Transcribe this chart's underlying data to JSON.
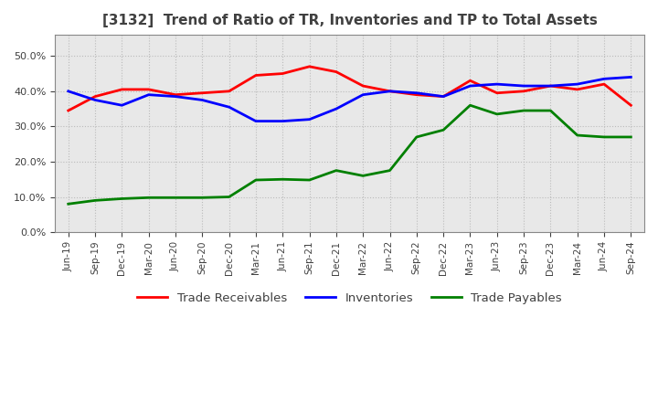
{
  "title": "[3132]  Trend of Ratio of TR, Inventories and TP to Total Assets",
  "x_labels": [
    "Jun-19",
    "Sep-19",
    "Dec-19",
    "Mar-20",
    "Jun-20",
    "Sep-20",
    "Dec-20",
    "Mar-21",
    "Jun-21",
    "Sep-21",
    "Dec-21",
    "Mar-22",
    "Jun-22",
    "Sep-22",
    "Dec-22",
    "Mar-23",
    "Jun-23",
    "Sep-23",
    "Dec-23",
    "Mar-24",
    "Jun-24",
    "Sep-24"
  ],
  "trade_receivables": [
    0.345,
    0.385,
    0.405,
    0.405,
    0.39,
    0.395,
    0.4,
    0.445,
    0.45,
    0.47,
    0.455,
    0.415,
    0.4,
    0.39,
    0.385,
    0.43,
    0.395,
    0.4,
    0.415,
    0.405,
    0.42,
    0.36
  ],
  "inventories": [
    0.4,
    0.375,
    0.36,
    0.39,
    0.385,
    0.375,
    0.355,
    0.315,
    0.315,
    0.32,
    0.35,
    0.39,
    0.4,
    0.395,
    0.385,
    0.415,
    0.42,
    0.415,
    0.415,
    0.42,
    0.435,
    0.44
  ],
  "trade_payables": [
    0.08,
    0.09,
    0.095,
    0.098,
    0.098,
    0.098,
    0.1,
    0.148,
    0.15,
    0.148,
    0.175,
    0.16,
    0.175,
    0.27,
    0.29,
    0.36,
    0.335,
    0.345,
    0.345,
    0.275,
    0.27,
    0.27
  ],
  "line_colors": {
    "trade_receivables": "#FF0000",
    "inventories": "#0000FF",
    "trade_payables": "#008000"
  },
  "ylim": [
    0.0,
    0.56
  ],
  "yticks": [
    0.0,
    0.1,
    0.2,
    0.3,
    0.4,
    0.5
  ],
  "plot_bg_color": "#E8E8E8",
  "fig_bg_color": "#FFFFFF",
  "grid_color": "#BBBBBB",
  "title_color": "#404040",
  "legend_labels": [
    "Trade Receivables",
    "Inventories",
    "Trade Payables"
  ]
}
